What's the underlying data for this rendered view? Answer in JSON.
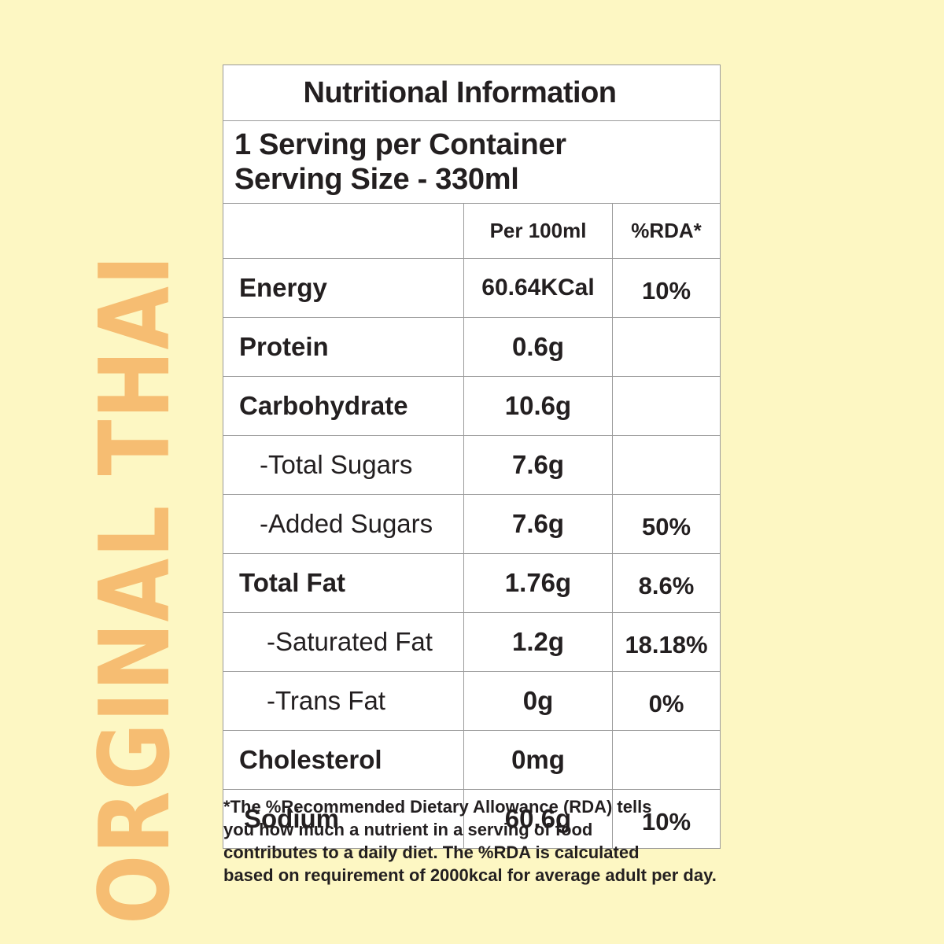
{
  "side_title": "ORGINAL THAI",
  "label": {
    "title": "Nutritional Information",
    "servings_per_container": "1 Serving per Container",
    "serving_size": "Serving Size - 330ml",
    "column_per": "Per 100ml",
    "column_rda": "%RDA*",
    "rows": [
      {
        "name": "Energy",
        "value": "60.64KCal",
        "rda": "10%"
      },
      {
        "name": "Protein",
        "value": "0.6g",
        "rda": ""
      },
      {
        "name": "Carbohydrate",
        "value": "10.6g",
        "rda": ""
      },
      {
        "name": "-Total Sugars",
        "value": "7.6g",
        "rda": ""
      },
      {
        "name": "-Added Sugars",
        "value": "7.6g",
        "rda": "50%"
      },
      {
        "name": "Total Fat",
        "value": "1.76g",
        "rda": "8.6%"
      },
      {
        "name": "-Saturated Fat",
        "value": "1.2g",
        "rda": "18.18%"
      },
      {
        "name": "-Trans Fat",
        "value": "0g",
        "rda": "0%"
      },
      {
        "name": "Cholesterol",
        "value": "0mg",
        "rda": ""
      },
      {
        "name": "Sodium",
        "value": "60.6g",
        "rda": "10%"
      }
    ]
  },
  "footnote": {
    "lines": [
      "*The %Recommended Dietary Allowance (RDA) tells",
      "you how much a nutrient in a serving of food",
      "contributes to a daily diet. The %RDA is calculated",
      "based on requirement of 2000kcal for average adult per day."
    ]
  },
  "colors": {
    "background": "#fdf7c3",
    "side_title": "#f6bd72",
    "table_background": "#ffffff",
    "text": "#231f20",
    "border": "#9a9a9a"
  }
}
